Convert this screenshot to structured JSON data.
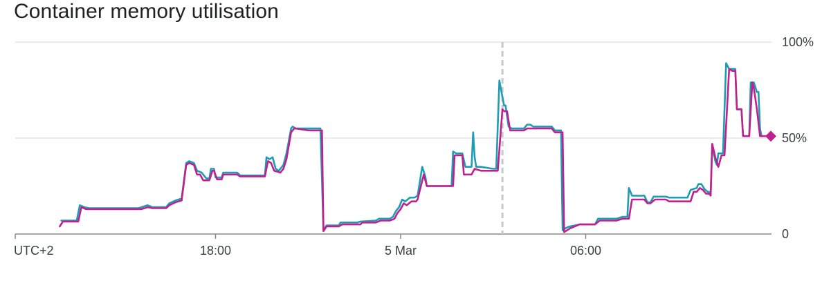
{
  "title": "Container memory utilisation",
  "colors": {
    "series_a": "#1e9cb3",
    "series_b": "#c0208e",
    "grid": "#e3e3e3",
    "axis": "#888888",
    "now_line": "#c8c8c8"
  },
  "chart_data": {
    "type": "line",
    "title": "Container memory utilisation",
    "ylim": [
      0,
      100
    ],
    "y_unit": "%",
    "y_ticks": [
      {
        "value": 100,
        "label": "100%"
      },
      {
        "value": 50,
        "label": "50%"
      },
      {
        "value": 0,
        "label": "0"
      }
    ],
    "x_ticks": [
      {
        "value": 0,
        "label": "UTC+2"
      },
      {
        "value": 6,
        "label": "18:00"
      },
      {
        "value": 12,
        "label": "5 Mar"
      },
      {
        "value": 18,
        "label": "06:00"
      }
    ],
    "x_unit_note": "hours since 12:00 on 4 Mar (UTC+2)",
    "xlim": [
      0,
      24
    ],
    "now_marker_x": 15.3,
    "grid": true,
    "series": [
      {
        "color": "#1e9cb3",
        "points": [
          [
            1.0,
            7
          ],
          [
            1.5,
            7
          ],
          [
            1.6,
            15
          ],
          [
            1.75,
            14
          ],
          [
            1.9,
            13.5
          ],
          [
            3.5,
            13.5
          ],
          [
            3.6,
            14
          ],
          [
            3.8,
            15
          ],
          [
            3.95,
            14
          ],
          [
            4.4,
            14
          ],
          [
            4.5,
            16
          ],
          [
            4.7,
            17.5
          ],
          [
            4.9,
            18.5
          ],
          [
            5.05,
            37
          ],
          [
            5.15,
            38
          ],
          [
            5.3,
            37
          ],
          [
            5.4,
            33
          ],
          [
            5.55,
            32
          ],
          [
            5.7,
            29
          ],
          [
            5.8,
            29
          ],
          [
            5.85,
            34
          ],
          [
            5.95,
            34
          ],
          [
            6.0,
            29.5
          ],
          [
            6.2,
            29.5
          ],
          [
            6.25,
            32
          ],
          [
            6.7,
            32
          ],
          [
            6.8,
            30.5
          ],
          [
            7.5,
            30.5
          ],
          [
            7.6,
            30.5
          ],
          [
            7.65,
            40
          ],
          [
            7.75,
            39
          ],
          [
            7.85,
            40
          ],
          [
            7.95,
            34
          ],
          [
            8.05,
            33
          ],
          [
            8.2,
            36
          ],
          [
            8.3,
            42
          ],
          [
            8.45,
            55
          ],
          [
            8.5,
            56
          ],
          [
            8.6,
            55
          ],
          [
            9.0,
            55
          ],
          [
            9.1,
            55
          ],
          [
            9.4,
            55
          ],
          [
            9.5,
            2
          ],
          [
            9.6,
            4.5
          ],
          [
            9.7,
            4.5
          ],
          [
            10.0,
            4.5
          ],
          [
            10.05,
            6
          ],
          [
            10.6,
            6
          ],
          [
            10.7,
            6.5
          ],
          [
            11.2,
            7
          ],
          [
            11.3,
            8
          ],
          [
            11.65,
            8
          ],
          [
            11.75,
            9
          ],
          [
            11.85,
            12
          ],
          [
            11.95,
            14
          ],
          [
            12.05,
            18
          ],
          [
            12.15,
            17
          ],
          [
            12.3,
            19
          ],
          [
            12.45,
            19
          ],
          [
            12.55,
            20
          ],
          [
            12.7,
            35
          ],
          [
            12.8,
            30
          ],
          [
            12.85,
            25
          ],
          [
            13.65,
            25
          ],
          [
            13.7,
            43
          ],
          [
            13.8,
            42
          ],
          [
            14.0,
            42
          ],
          [
            14.1,
            35
          ],
          [
            14.2,
            35
          ],
          [
            14.3,
            35
          ],
          [
            14.35,
            53
          ],
          [
            14.4,
            40
          ],
          [
            14.45,
            35
          ],
          [
            14.6,
            35
          ],
          [
            15.0,
            34
          ],
          [
            15.1,
            34
          ],
          [
            15.2,
            80
          ],
          [
            15.35,
            67
          ],
          [
            15.4,
            67
          ],
          [
            15.5,
            56
          ],
          [
            15.6,
            55
          ],
          [
            16.0,
            55
          ],
          [
            16.1,
            57
          ],
          [
            16.2,
            57
          ],
          [
            16.3,
            56
          ],
          [
            16.9,
            56
          ],
          [
            17.0,
            54
          ],
          [
            17.2,
            54
          ],
          [
            17.25,
            2
          ],
          [
            17.4,
            3.5
          ],
          [
            17.5,
            4
          ],
          [
            17.8,
            5
          ],
          [
            18.3,
            5
          ],
          [
            18.4,
            8
          ],
          [
            19.0,
            8
          ],
          [
            19.2,
            9
          ],
          [
            19.35,
            9
          ],
          [
            19.4,
            24
          ],
          [
            19.5,
            20
          ],
          [
            19.9,
            20
          ],
          [
            20.0,
            16.5
          ],
          [
            20.1,
            16.5
          ],
          [
            20.2,
            19.5
          ],
          [
            20.6,
            19.5
          ],
          [
            20.7,
            19
          ],
          [
            21.3,
            19
          ],
          [
            21.4,
            23
          ],
          [
            21.6,
            24
          ],
          [
            21.65,
            26
          ],
          [
            21.75,
            26
          ],
          [
            21.85,
            23.5
          ],
          [
            21.95,
            22
          ],
          [
            22.0,
            22
          ],
          [
            22.05,
            21
          ],
          [
            22.1,
            46
          ],
          [
            22.2,
            38
          ],
          [
            22.25,
            36
          ],
          [
            22.3,
            42
          ],
          [
            22.45,
            42
          ],
          [
            22.55,
            89
          ],
          [
            22.65,
            86
          ],
          [
            22.75,
            86
          ],
          [
            22.85,
            86
          ],
          [
            22.9,
            65
          ],
          [
            23.0,
            65
          ],
          [
            23.05,
            65
          ],
          [
            23.1,
            51
          ],
          [
            23.3,
            51
          ],
          [
            23.35,
            79
          ],
          [
            23.45,
            79
          ],
          [
            23.55,
            74
          ],
          [
            23.6,
            74
          ],
          [
            23.65,
            55
          ],
          [
            23.7,
            51
          ],
          [
            24.0,
            51
          ]
        ]
      },
      {
        "color": "#c0208e",
        "points": [
          [
            0.95,
            4
          ],
          [
            1.05,
            6.5
          ],
          [
            1.55,
            6.5
          ],
          [
            1.65,
            14
          ],
          [
            1.8,
            13
          ],
          [
            3.5,
            13
          ],
          [
            3.6,
            13
          ],
          [
            3.8,
            14
          ],
          [
            3.95,
            13.5
          ],
          [
            4.4,
            13.5
          ],
          [
            4.5,
            15
          ],
          [
            4.7,
            16.5
          ],
          [
            4.9,
            17.5
          ],
          [
            5.05,
            36
          ],
          [
            5.15,
            37
          ],
          [
            5.3,
            36
          ],
          [
            5.4,
            31
          ],
          [
            5.5,
            31
          ],
          [
            5.6,
            28
          ],
          [
            5.8,
            28
          ],
          [
            5.9,
            33
          ],
          [
            5.95,
            33
          ],
          [
            6.05,
            28.5
          ],
          [
            6.2,
            28.5
          ],
          [
            6.25,
            31
          ],
          [
            6.7,
            31
          ],
          [
            6.8,
            30
          ],
          [
            7.5,
            30
          ],
          [
            7.6,
            30
          ],
          [
            7.7,
            38
          ],
          [
            7.8,
            37
          ],
          [
            7.9,
            33
          ],
          [
            8.1,
            32
          ],
          [
            8.2,
            34
          ],
          [
            8.3,
            39
          ],
          [
            8.45,
            53
          ],
          [
            8.55,
            55
          ],
          [
            8.6,
            55
          ],
          [
            9.0,
            54
          ],
          [
            9.1,
            54
          ],
          [
            9.45,
            54
          ],
          [
            9.5,
            1.5
          ],
          [
            9.6,
            4
          ],
          [
            9.7,
            4
          ],
          [
            10.0,
            4
          ],
          [
            10.1,
            5
          ],
          [
            10.7,
            5
          ],
          [
            10.75,
            6
          ],
          [
            11.2,
            6
          ],
          [
            11.35,
            7
          ],
          [
            11.65,
            7
          ],
          [
            11.8,
            8
          ],
          [
            11.9,
            11
          ],
          [
            12.0,
            13
          ],
          [
            12.1,
            16
          ],
          [
            12.2,
            15
          ],
          [
            12.35,
            17
          ],
          [
            12.5,
            17
          ],
          [
            12.55,
            18
          ],
          [
            12.75,
            31
          ],
          [
            12.85,
            25
          ],
          [
            13.7,
            25
          ],
          [
            13.75,
            41
          ],
          [
            13.8,
            41
          ],
          [
            14.0,
            41
          ],
          [
            14.05,
            31
          ],
          [
            14.3,
            31
          ],
          [
            14.4,
            34
          ],
          [
            14.6,
            33
          ],
          [
            15.1,
            33
          ],
          [
            15.15,
            33
          ],
          [
            15.3,
            65
          ],
          [
            15.35,
            64
          ],
          [
            15.45,
            64
          ],
          [
            15.55,
            54
          ],
          [
            15.6,
            54
          ],
          [
            16.0,
            54
          ],
          [
            16.1,
            55
          ],
          [
            16.2,
            55
          ],
          [
            16.3,
            55
          ],
          [
            16.9,
            55
          ],
          [
            17.0,
            53
          ],
          [
            17.25,
            53
          ],
          [
            17.3,
            1
          ],
          [
            17.4,
            2
          ],
          [
            17.5,
            3
          ],
          [
            17.8,
            5
          ],
          [
            18.3,
            5
          ],
          [
            18.45,
            7
          ],
          [
            19.0,
            7
          ],
          [
            19.2,
            8
          ],
          [
            19.4,
            8
          ],
          [
            19.5,
            18
          ],
          [
            19.9,
            18
          ],
          [
            20.0,
            16
          ],
          [
            20.1,
            16
          ],
          [
            20.25,
            18
          ],
          [
            20.6,
            18
          ],
          [
            20.7,
            17
          ],
          [
            21.4,
            17
          ],
          [
            21.5,
            22
          ],
          [
            21.6,
            22
          ],
          [
            21.7,
            24
          ],
          [
            21.8,
            23
          ],
          [
            21.9,
            21
          ],
          [
            22.0,
            21
          ],
          [
            22.05,
            20
          ],
          [
            22.1,
            47
          ],
          [
            22.2,
            40
          ],
          [
            22.3,
            35
          ],
          [
            22.4,
            41
          ],
          [
            22.5,
            41
          ],
          [
            22.65,
            86
          ],
          [
            22.75,
            85
          ],
          [
            22.85,
            85
          ],
          [
            22.9,
            65
          ],
          [
            23.0,
            65
          ],
          [
            23.05,
            65
          ],
          [
            23.1,
            51
          ],
          [
            23.3,
            51
          ],
          [
            23.4,
            79
          ],
          [
            23.45,
            76
          ],
          [
            23.55,
            65
          ],
          [
            23.65,
            51
          ],
          [
            24.0,
            51
          ]
        ]
      }
    ],
    "end_marker": {
      "x": 24.0,
      "y": 51,
      "shape": "diamond"
    }
  }
}
